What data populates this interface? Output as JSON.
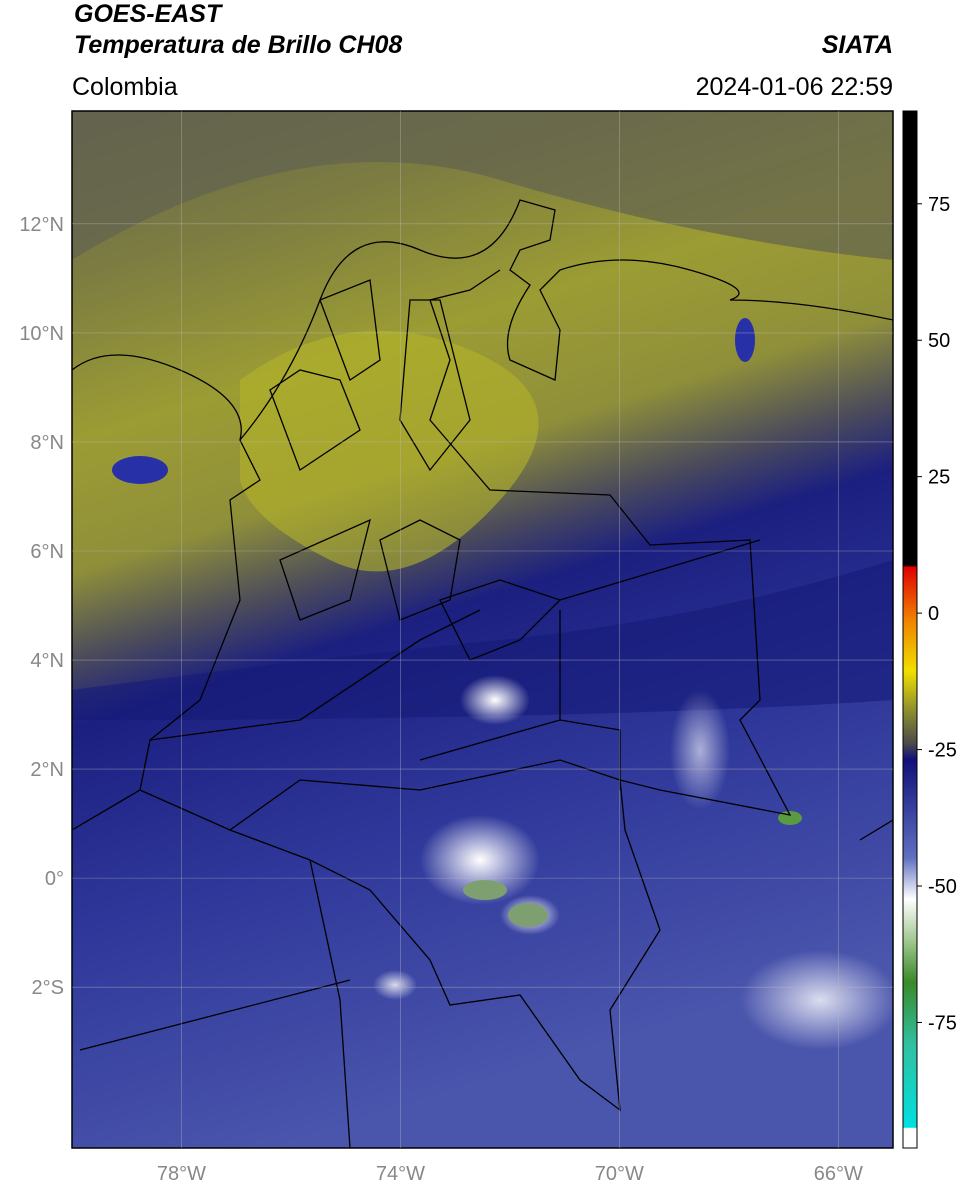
{
  "header": {
    "title": "GOES-EAST",
    "subtitle": "Temperatura de Brillo CH08",
    "region": "Colombia",
    "source": "SIATA",
    "datetime": "2024-01-06 22:59"
  },
  "map": {
    "xlim": [
      -80,
      -65
    ],
    "ylim": [
      -4.95,
      14.07
    ],
    "xticks": [
      {
        "value": -78,
        "label": "78°W"
      },
      {
        "value": -74,
        "label": "74°W"
      },
      {
        "value": -70,
        "label": "70°W"
      },
      {
        "value": -66,
        "label": "66°W"
      }
    ],
    "yticks": [
      {
        "value": 12,
        "label": "12°N"
      },
      {
        "value": 10,
        "label": "10°N"
      },
      {
        "value": 8,
        "label": "8°N"
      },
      {
        "value": 6,
        "label": "6°N"
      },
      {
        "value": 4,
        "label": "4°N"
      },
      {
        "value": 2,
        "label": "2°N"
      },
      {
        "value": 0,
        "label": "0°"
      },
      {
        "value": -2,
        "label": "2°S"
      }
    ],
    "grid": true
  },
  "colorbar": {
    "lim": [
      -98,
      92
    ],
    "ticks": [
      75,
      50,
      25,
      0,
      -25,
      -50,
      -75
    ]
  }
}
